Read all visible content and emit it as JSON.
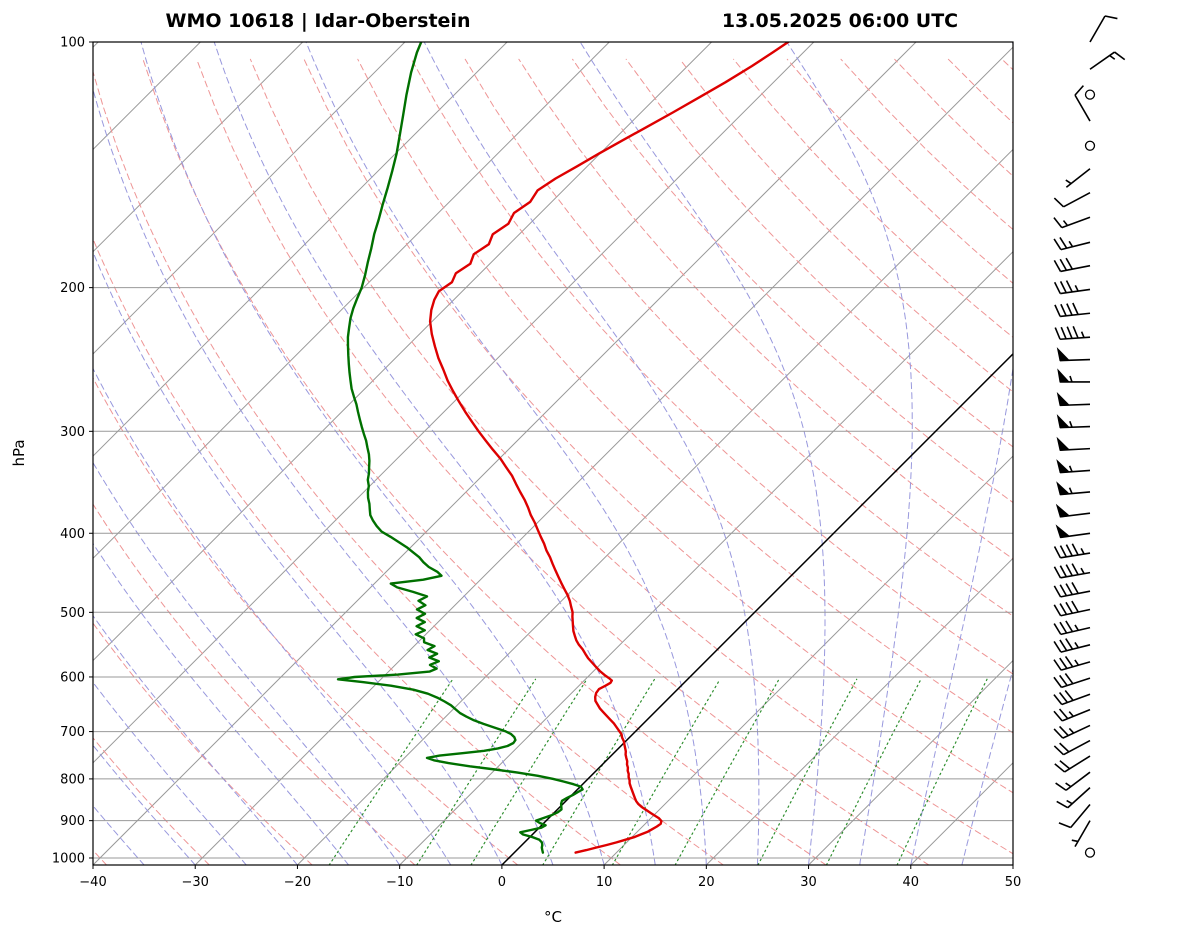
{
  "chart_data": {
    "type": "skewt_log_p_sounding",
    "title_left": "WMO 10618 | Idar-Oberstein",
    "title_right": "13.05.2025 06:00 UTC",
    "station": {
      "wmo_id": "10618",
      "name": "Idar-Oberstein"
    },
    "datetime": "13.05.2025 06:00 UTC",
    "xlabel": "°C",
    "ylabel": "hPa",
    "x_axis": {
      "min": -40,
      "max": 50,
      "ticks": [
        -40,
        -30,
        -20,
        -10,
        0,
        10,
        20,
        30,
        40,
        50
      ]
    },
    "y_axis": {
      "min_hpa": 100,
      "max_hpa": 1020,
      "scale": "log",
      "ticks": [
        100,
        200,
        300,
        400,
        500,
        600,
        700,
        800,
        900,
        1000
      ]
    },
    "skew_deg": 45,
    "grid": {
      "isotherm_step_c": 10,
      "highlight_isotherm_c": 0,
      "dry_adiabat_step_c": 10,
      "moist_adiabat_step_c": 5,
      "mixing_ratio_g_kg": [
        1,
        2,
        3,
        5,
        8,
        12,
        20,
        30,
        45
      ],
      "mixing_ratio_top_hpa": 590
    },
    "colors": {
      "temperature": "#dd0000",
      "dewpoint": "#007000",
      "isotherm": "#999999",
      "pressure_line": "#999999",
      "dry_adiabat": "#ee9595",
      "moist_adiabat": "#9898dd",
      "mixing_ratio": "#2f8f2f",
      "highlight_isotherm": "#000000",
      "wind_barb": "#000000",
      "frame": "#000000"
    },
    "series": {
      "temperature_c": [
        [
          985,
          6.0
        ],
        [
          978,
          6.8
        ],
        [
          971,
          7.5
        ],
        [
          964,
          8.3
        ],
        [
          957,
          9.0
        ],
        [
          950,
          9.6
        ],
        [
          943,
          10.2
        ],
        [
          936,
          10.6
        ],
        [
          929,
          11.0
        ],
        [
          922,
          11.2
        ],
        [
          915,
          11.4
        ],
        [
          908,
          11.5
        ],
        [
          901,
          11.3
        ],
        [
          894,
          10.8
        ],
        [
          887,
          10.1
        ],
        [
          880,
          9.4
        ],
        [
          873,
          8.7
        ],
        [
          866,
          8.0
        ],
        [
          859,
          7.4
        ],
        [
          852,
          6.9
        ],
        [
          845,
          6.5
        ],
        [
          838,
          6.1
        ],
        [
          831,
          5.7
        ],
        [
          824,
          5.3
        ],
        [
          817,
          4.9
        ],
        [
          810,
          4.5
        ],
        [
          803,
          4.2
        ],
        [
          796,
          3.8
        ],
        [
          789,
          3.5
        ],
        [
          782,
          3.1
        ],
        [
          775,
          2.8
        ],
        [
          768,
          2.4
        ],
        [
          761,
          2.1
        ],
        [
          754,
          1.7
        ],
        [
          747,
          1.3
        ],
        [
          740,
          1.0
        ],
        [
          733,
          0.6
        ],
        [
          726,
          0.2
        ],
        [
          719,
          -0.2
        ],
        [
          712,
          -0.7
        ],
        [
          705,
          -1.1
        ],
        [
          698,
          -1.7
        ],
        [
          691,
          -2.3
        ],
        [
          684,
          -2.9
        ],
        [
          677,
          -3.6
        ],
        [
          670,
          -4.3
        ],
        [
          663,
          -5.0
        ],
        [
          656,
          -5.7
        ],
        [
          649,
          -6.3
        ],
        [
          642,
          -6.9
        ],
        [
          635,
          -7.3
        ],
        [
          628,
          -7.6
        ],
        [
          621,
          -7.7
        ],
        [
          615,
          -7.4
        ],
        [
          610,
          -7.2
        ],
        [
          606,
          -7.3
        ],
        [
          602,
          -7.8
        ],
        [
          597,
          -8.5
        ],
        [
          590,
          -9.4
        ],
        [
          583,
          -10.2
        ],
        [
          576,
          -11.0
        ],
        [
          569,
          -11.8
        ],
        [
          562,
          -12.5
        ],
        [
          555,
          -13.2
        ],
        [
          548,
          -14.0
        ],
        [
          541,
          -14.7
        ],
        [
          534,
          -15.3
        ],
        [
          527,
          -15.9
        ],
        [
          520,
          -16.4
        ],
        [
          513,
          -16.9
        ],
        [
          506,
          -17.4
        ],
        [
          500,
          -17.8
        ],
        [
          492,
          -18.5
        ],
        [
          484,
          -19.2
        ],
        [
          476,
          -20.0
        ],
        [
          468,
          -20.9
        ],
        [
          460,
          -21.8
        ],
        [
          452,
          -22.7
        ],
        [
          444,
          -23.6
        ],
        [
          436,
          -24.5
        ],
        [
          428,
          -25.4
        ],
        [
          420,
          -26.4
        ],
        [
          412,
          -27.3
        ],
        [
          404,
          -28.3
        ],
        [
          396,
          -29.3
        ],
        [
          388,
          -30.3
        ],
        [
          380,
          -31.4
        ],
        [
          372,
          -32.4
        ],
        [
          364,
          -33.5
        ],
        [
          356,
          -34.7
        ],
        [
          348,
          -35.9
        ],
        [
          340,
          -37.1
        ],
        [
          332,
          -38.5
        ],
        [
          324,
          -39.9
        ],
        [
          316,
          -41.5
        ],
        [
          308,
          -43.1
        ],
        [
          300,
          -44.7
        ],
        [
          292,
          -46.3
        ],
        [
          284,
          -47.9
        ],
        [
          276,
          -49.5
        ],
        [
          268,
          -51.1
        ],
        [
          260,
          -52.7
        ],
        [
          252,
          -54.2
        ],
        [
          244,
          -55.8
        ],
        [
          236,
          -57.3
        ],
        [
          228,
          -58.8
        ],
        [
          220,
          -60.2
        ],
        [
          213,
          -61.2
        ],
        [
          207,
          -61.9
        ],
        [
          202,
          -62.3
        ],
        [
          197,
          -61.9
        ],
        [
          192,
          -62.4
        ],
        [
          187,
          -61.9
        ],
        [
          182,
          -62.5
        ],
        [
          177,
          -62.0
        ],
        [
          172,
          -62.6
        ],
        [
          167,
          -62.1
        ],
        [
          162,
          -62.6
        ],
        [
          157,
          -62.1
        ],
        [
          152,
          -62.5
        ],
        [
          147,
          -61.9
        ],
        [
          142,
          -61.0
        ],
        [
          137,
          -60.1
        ],
        [
          132,
          -59.1
        ],
        [
          127,
          -58.0
        ],
        [
          122,
          -56.9
        ],
        [
          117,
          -55.8
        ],
        [
          112,
          -54.7
        ],
        [
          107,
          -53.7
        ],
        [
          103,
          -53.0
        ],
        [
          100,
          -52.5
        ]
      ],
      "dewpoint_c": [
        [
          985,
          2.8
        ],
        [
          978,
          2.5
        ],
        [
          971,
          2.2
        ],
        [
          964,
          2.0
        ],
        [
          957,
          1.7
        ],
        [
          950,
          1.2
        ],
        [
          943,
          0.3
        ],
        [
          936,
          -0.9
        ],
        [
          930,
          -1.4
        ],
        [
          924,
          -0.6
        ],
        [
          918,
          0.2
        ],
        [
          912,
          0.4
        ],
        [
          906,
          -0.4
        ],
        [
          900,
          -1.0
        ],
        [
          893,
          -0.5
        ],
        [
          886,
          0.0
        ],
        [
          879,
          0.3
        ],
        [
          872,
          0.4
        ],
        [
          865,
          0.1
        ],
        [
          858,
          -0.2
        ],
        [
          851,
          -0.4
        ],
        [
          844,
          -0.2
        ],
        [
          837,
          0.1
        ],
        [
          830,
          0.3
        ],
        [
          824,
          0.5
        ],
        [
          818,
          0.1
        ],
        [
          812,
          -0.9
        ],
        [
          806,
          -2.1
        ],
        [
          800,
          -3.4
        ],
        [
          793,
          -5.2
        ],
        [
          786,
          -7.5
        ],
        [
          779,
          -10.0
        ],
        [
          772,
          -12.8
        ],
        [
          765,
          -15.2
        ],
        [
          759,
          -16.9
        ],
        [
          754,
          -17.8
        ],
        [
          749,
          -16.8
        ],
        [
          744,
          -14.8
        ],
        [
          739,
          -12.9
        ],
        [
          734,
          -11.8
        ],
        [
          729,
          -11.1
        ],
        [
          723,
          -10.8
        ],
        [
          717,
          -10.9
        ],
        [
          711,
          -11.3
        ],
        [
          705,
          -11.9
        ],
        [
          699,
          -12.8
        ],
        [
          692,
          -14.2
        ],
        [
          685,
          -15.6
        ],
        [
          678,
          -16.9
        ],
        [
          671,
          -18.0
        ],
        [
          664,
          -19.0
        ],
        [
          657,
          -19.8
        ],
        [
          650,
          -20.6
        ],
        [
          643,
          -21.6
        ],
        [
          636,
          -22.7
        ],
        [
          629,
          -24.0
        ],
        [
          622,
          -25.8
        ],
        [
          615,
          -28.4
        ],
        [
          609,
          -31.4
        ],
        [
          604,
          -34.2
        ],
        [
          600,
          -32.8
        ],
        [
          596,
          -28.8
        ],
        [
          591,
          -26.0
        ],
        [
          586,
          -25.6
        ],
        [
          580,
          -26.6
        ],
        [
          574,
          -26.1
        ],
        [
          568,
          -27.4
        ],
        [
          562,
          -27.0
        ],
        [
          556,
          -28.3
        ],
        [
          550,
          -28.0
        ],
        [
          544,
          -29.4
        ],
        [
          538,
          -29.8
        ],
        [
          532,
          -31.0
        ],
        [
          526,
          -30.5
        ],
        [
          520,
          -31.7
        ],
        [
          514,
          -31.3
        ],
        [
          508,
          -32.5
        ],
        [
          502,
          -32.1
        ],
        [
          496,
          -33.3
        ],
        [
          490,
          -32.9
        ],
        [
          484,
          -34.0
        ],
        [
          478,
          -33.6
        ],
        [
          472,
          -35.4
        ],
        [
          466,
          -37.4
        ],
        [
          461,
          -38.4
        ],
        [
          456,
          -35.6
        ],
        [
          451,
          -34.2
        ],
        [
          446,
          -35.0
        ],
        [
          440,
          -36.3
        ],
        [
          434,
          -37.3
        ],
        [
          428,
          -38.2
        ],
        [
          422,
          -39.3
        ],
        [
          416,
          -40.4
        ],
        [
          410,
          -41.7
        ],
        [
          404,
          -43.0
        ],
        [
          398,
          -44.4
        ],
        [
          392,
          -45.4
        ],
        [
          386,
          -46.3
        ],
        [
          380,
          -47.1
        ],
        [
          374,
          -47.7
        ],
        [
          368,
          -48.3
        ],
        [
          362,
          -49.0
        ],
        [
          356,
          -49.6
        ],
        [
          350,
          -50.1
        ],
        [
          344,
          -50.8
        ],
        [
          338,
          -51.3
        ],
        [
          332,
          -51.9
        ],
        [
          326,
          -52.5
        ],
        [
          320,
          -53.2
        ],
        [
          314,
          -54.0
        ],
        [
          308,
          -54.8
        ],
        [
          302,
          -55.7
        ],
        [
          296,
          -56.6
        ],
        [
          290,
          -57.5
        ],
        [
          284,
          -58.4
        ],
        [
          278,
          -59.3
        ],
        [
          272,
          -60.3
        ],
        [
          266,
          -61.3
        ],
        [
          260,
          -62.2
        ],
        [
          254,
          -63.1
        ],
        [
          248,
          -64.0
        ],
        [
          242,
          -64.9
        ],
        [
          236,
          -65.8
        ],
        [
          230,
          -66.7
        ],
        [
          224,
          -67.5
        ],
        [
          218,
          -68.3
        ],
        [
          212,
          -69.0
        ],
        [
          206,
          -69.6
        ],
        [
          200,
          -70.2
        ],
        [
          193,
          -71.1
        ],
        [
          186,
          -72.1
        ],
        [
          179,
          -73.1
        ],
        [
          172,
          -74.2
        ],
        [
          165,
          -75.2
        ],
        [
          158,
          -76.3
        ],
        [
          151,
          -77.4
        ],
        [
          144,
          -78.6
        ],
        [
          137,
          -79.9
        ],
        [
          130,
          -81.4
        ],
        [
          123,
          -83.0
        ],
        [
          116,
          -84.7
        ],
        [
          109,
          -86.4
        ],
        [
          103,
          -87.8
        ],
        [
          100,
          -88.4
        ]
      ]
    },
    "wind_barbs": [
      [
        985,
        0,
        0
      ],
      [
        900,
        5,
        210
      ],
      [
        860,
        10,
        220
      ],
      [
        820,
        15,
        228
      ],
      [
        785,
        15,
        233
      ],
      [
        750,
        20,
        238
      ],
      [
        718,
        20,
        242
      ],
      [
        688,
        25,
        245
      ],
      [
        658,
        25,
        248
      ],
      [
        630,
        30,
        250
      ],
      [
        602,
        30,
        252
      ],
      [
        575,
        35,
        254
      ],
      [
        548,
        35,
        256
      ],
      [
        522,
        35,
        257
      ],
      [
        496,
        40,
        258
      ],
      [
        471,
        40,
        259
      ],
      [
        447,
        45,
        260
      ],
      [
        423,
        45,
        261
      ],
      [
        400,
        50,
        262
      ],
      [
        378,
        50,
        263
      ],
      [
        356,
        55,
        265
      ],
      [
        335,
        55,
        266
      ],
      [
        315,
        50,
        267
      ],
      [
        296,
        55,
        268
      ],
      [
        278,
        50,
        268
      ],
      [
        261,
        55,
        270
      ],
      [
        245,
        50,
        268
      ],
      [
        230,
        45,
        266
      ],
      [
        215,
        40,
        264
      ],
      [
        201,
        35,
        262
      ],
      [
        188,
        30,
        259
      ],
      [
        176,
        25,
        256
      ],
      [
        164,
        15,
        250
      ],
      [
        153,
        10,
        242
      ],
      [
        143,
        5,
        232
      ],
      [
        134,
        0,
        0
      ],
      [
        125,
        10,
        330
      ],
      [
        116,
        0,
        0
      ],
      [
        108,
        15,
        55
      ],
      [
        100,
        10,
        30
      ]
    ]
  }
}
